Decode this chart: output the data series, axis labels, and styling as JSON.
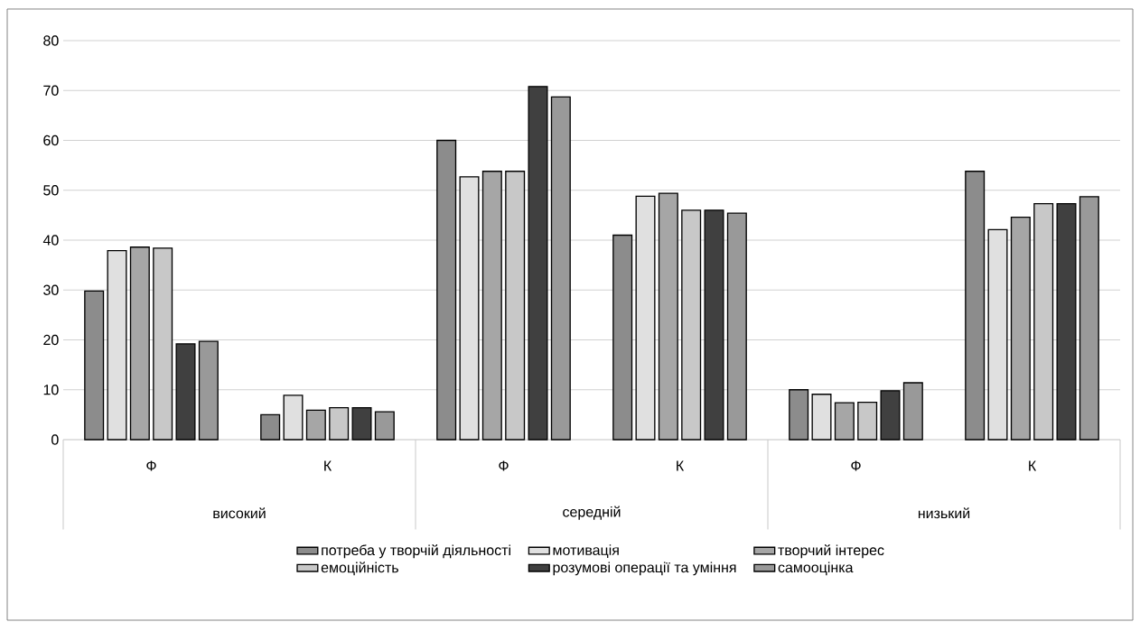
{
  "chart_data": {
    "type": "bar",
    "categories": [
      "Ф",
      "К",
      "Ф",
      "К",
      "Ф",
      "К"
    ],
    "annotations": [
      "високий",
      "середній",
      "низький"
    ],
    "series": [
      {
        "name": "потреба у творчій діяльності",
        "color": "#8c8c8c",
        "values": [
          29.8,
          5.0,
          60.0,
          41.0,
          10.0,
          53.8
        ]
      },
      {
        "name": "мотивація",
        "color": "#e0e0e0",
        "values": [
          37.9,
          8.9,
          52.7,
          48.8,
          9.1,
          42.1
        ]
      },
      {
        "name": "творчий інтерес",
        "color": "#a6a6a6",
        "values": [
          38.6,
          5.9,
          53.8,
          49.4,
          7.4,
          44.6
        ]
      },
      {
        "name": "емоційність",
        "color": "#c8c8c8",
        "values": [
          38.4,
          6.4,
          53.8,
          46.0,
          7.5,
          47.3
        ]
      },
      {
        "name": "розумові операції та уміння",
        "color": "#404040",
        "values": [
          19.2,
          6.4,
          70.8,
          46.0,
          9.8,
          47.3
        ]
      },
      {
        "name": "самооцінка",
        "color": "#999999",
        "values": [
          19.7,
          5.6,
          68.7,
          45.4,
          11.4,
          48.7
        ]
      }
    ],
    "ylim": [
      0,
      80
    ],
    "yticks": [
      0,
      10,
      20,
      30,
      40,
      50,
      60,
      70,
      80
    ],
    "grid": "y",
    "legend": "bottom"
  }
}
